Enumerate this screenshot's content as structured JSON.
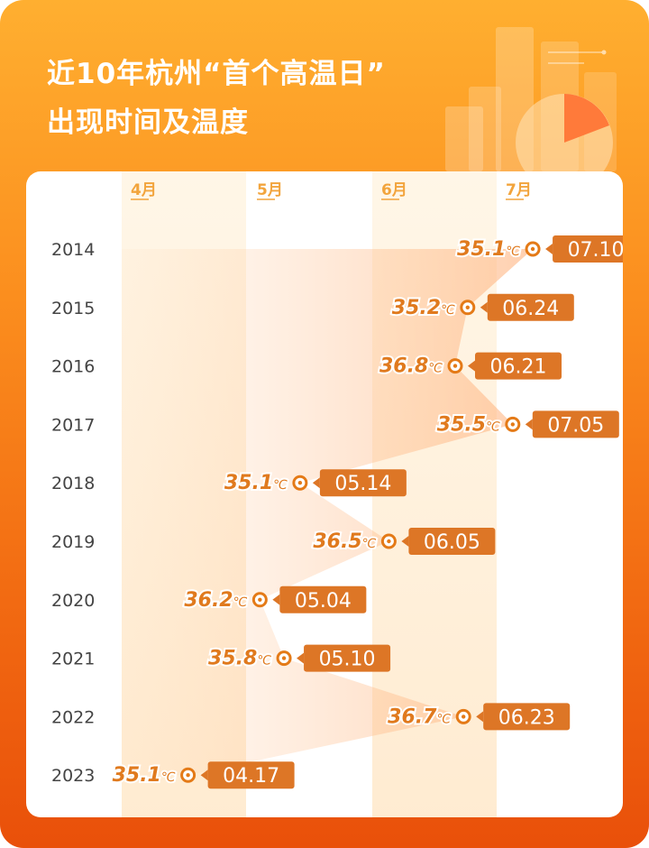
{
  "header": {
    "title_line1": "近10年杭州“首个高温日”",
    "title_line2": "出现时间及温度"
  },
  "colors": {
    "background_top": "#ffaf30",
    "background_bottom": "#e9500a",
    "accent": "#e47a17",
    "label_box": "#dd7626",
    "temperature_text": "#e07a1e",
    "month_label": "#f2a43c"
  },
  "chart_data": {
    "type": "scatter",
    "x_axis": {
      "type": "date",
      "tick_labels": [
        "4月",
        "5月",
        "6月",
        "7月"
      ],
      "range": [
        "04-01",
        "07-31"
      ]
    },
    "y_axis": {
      "type": "category",
      "categories": [
        "2014",
        "2015",
        "2016",
        "2017",
        "2018",
        "2019",
        "2020",
        "2021",
        "2022",
        "2023"
      ]
    },
    "temperature_unit": "℃",
    "points": [
      {
        "year": "2014",
        "date": "07.10",
        "temperature": "35.1"
      },
      {
        "year": "2015",
        "date": "06.24",
        "temperature": "35.2"
      },
      {
        "year": "2016",
        "date": "06.21",
        "temperature": "36.8"
      },
      {
        "year": "2017",
        "date": "07.05",
        "temperature": "35.5"
      },
      {
        "year": "2018",
        "date": "05.14",
        "temperature": "35.1"
      },
      {
        "year": "2019",
        "date": "06.05",
        "temperature": "36.5"
      },
      {
        "year": "2020",
        "date": "05.04",
        "temperature": "36.2"
      },
      {
        "year": "2021",
        "date": "05.10",
        "temperature": "35.8"
      },
      {
        "year": "2022",
        "date": "06.23",
        "temperature": "36.7"
      },
      {
        "year": "2023",
        "date": "04.17",
        "temperature": "35.1"
      }
    ]
  }
}
